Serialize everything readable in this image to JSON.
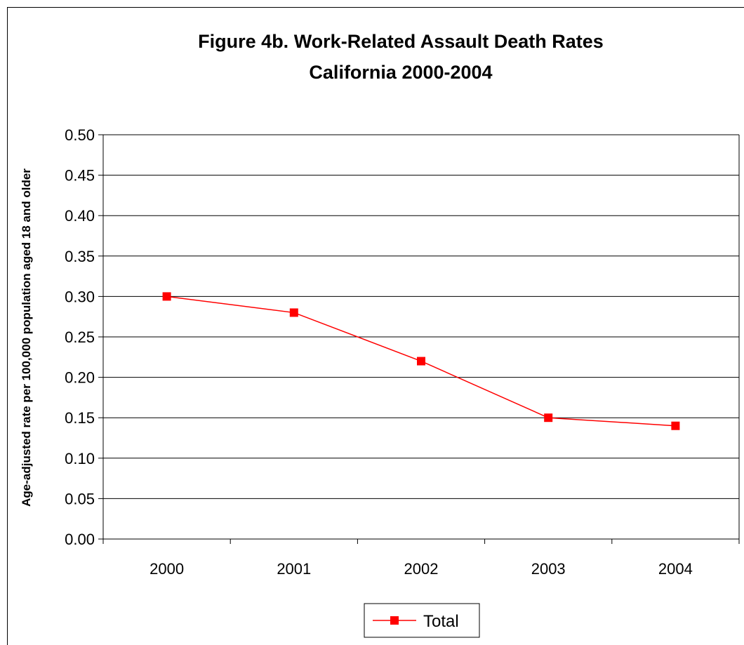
{
  "chart_data": {
    "type": "line",
    "title": "Figure 4b.  Work-Related Assault Death Rates",
    "subtitle": "California 2000-2004",
    "xlabel": "",
    "ylabel": "Age-adjusted rate per 100,000 population aged 18 and older",
    "categories": [
      "2000",
      "2001",
      "2002",
      "2003",
      "2004"
    ],
    "series": [
      {
        "name": "Total",
        "values": [
          0.3,
          0.28,
          0.22,
          0.15,
          0.14
        ],
        "color": "#ff0000"
      }
    ],
    "ylim": [
      0,
      0.5
    ],
    "ytick_step": 0.05,
    "yticks": [
      "0.00",
      "0.05",
      "0.10",
      "0.15",
      "0.20",
      "0.25",
      "0.30",
      "0.35",
      "0.40",
      "0.45",
      "0.50"
    ],
    "grid": true,
    "legend": "bottom-center"
  }
}
